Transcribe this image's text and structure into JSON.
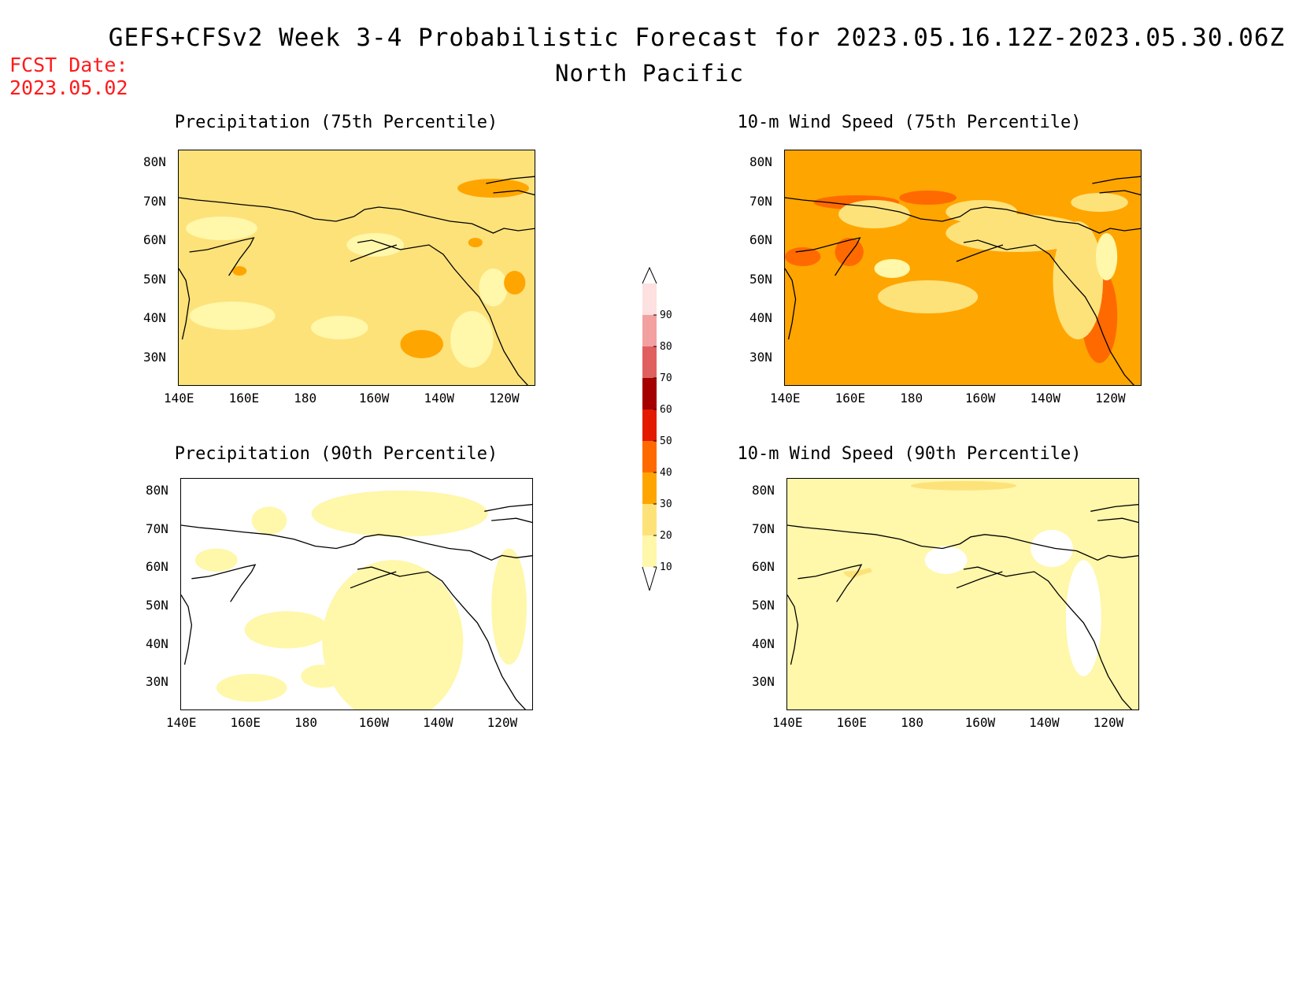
{
  "header": {
    "title": "GEFS+CFSv2 Week 3-4 Probabilistic Forecast for 2023.05.16.12Z-2023.05.30.06Z",
    "subtitle": "North Pacific",
    "fcst_label": "FCST Date:",
    "fcst_date": "2023.05.02"
  },
  "panels": [
    {
      "id": "precip-75",
      "title": "Precipitation (75th Percentile)",
      "base": "#fde27a",
      "dominant": "30-40 patches near 40N 150W"
    },
    {
      "id": "wind-75",
      "title": "10-m Wind Speed (75th Percentile)",
      "base": "#ffa500",
      "dominant": "30-50"
    },
    {
      "id": "precip-90",
      "title": "Precipitation (90th Percentile)",
      "base": "#ffffff",
      "dominant": "10-20"
    },
    {
      "id": "wind-90",
      "title": "10-m Wind Speed (90th Percentile)",
      "base": "#fff7aa",
      "dominant": "10-20"
    }
  ],
  "axes": {
    "lat_labels": [
      "80N",
      "70N",
      "60N",
      "50N",
      "40N",
      "30N"
    ],
    "lon_labels": [
      "140E",
      "160E",
      "180",
      "160W",
      "140W",
      "120W"
    ]
  },
  "colorbar": {
    "levels": [
      "10",
      "20",
      "30",
      "40",
      "50",
      "60",
      "70",
      "80",
      "90"
    ],
    "colors": [
      "#fff7aa",
      "#fde27a",
      "#ffa500",
      "#ff6a00",
      "#e31a00",
      "#a50000",
      "#e06060",
      "#f3a0a0",
      "#fde0e0"
    ]
  }
}
